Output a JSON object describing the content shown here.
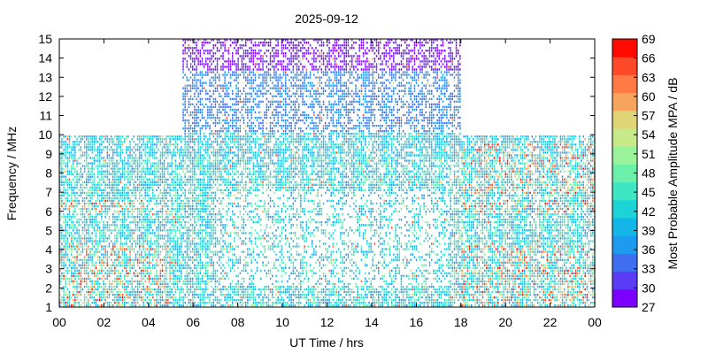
{
  "chart_data": {
    "type": "heatmap",
    "title": "2025-09-12",
    "xlabel": "UT Time / hrs",
    "ylabel": "Frequency / MHz",
    "xlim": [
      0,
      24
    ],
    "ylim": [
      1,
      15
    ],
    "x_ticks": [
      "00",
      "02",
      "04",
      "06",
      "08",
      "10",
      "12",
      "14",
      "16",
      "18",
      "20",
      "22",
      "00"
    ],
    "y_ticks": [
      "1",
      "2",
      "3",
      "4",
      "5",
      "6",
      "7",
      "8",
      "9",
      "10",
      "11",
      "12",
      "13",
      "14",
      "15"
    ],
    "colorbar": {
      "label": "Most Probable Amplitude MPA / dB",
      "min": 27,
      "max": 69,
      "ticks": [
        "27",
        "30",
        "33",
        "36",
        "39",
        "42",
        "45",
        "48",
        "51",
        "54",
        "57",
        "60",
        "63",
        "66",
        "69"
      ],
      "colors": [
        "#7b00ff",
        "#5a3cf5",
        "#3f6ff0",
        "#1e9bee",
        "#12b7e8",
        "#1cd4d8",
        "#3fe6c4",
        "#6af0a8",
        "#9af29a",
        "#c8e98a",
        "#e0d477",
        "#f7a55e",
        "#ff7a44",
        "#ff4a2a",
        "#ff0a00"
      ]
    },
    "regions": [
      {
        "t_start": 0,
        "t_end": 5.5,
        "f_max": 9.9
      },
      {
        "t_start": 5.5,
        "t_end": 18,
        "f_max": 15
      },
      {
        "t_start": 18,
        "t_end": 24,
        "f_max": 9.9
      }
    ],
    "grid": false
  }
}
